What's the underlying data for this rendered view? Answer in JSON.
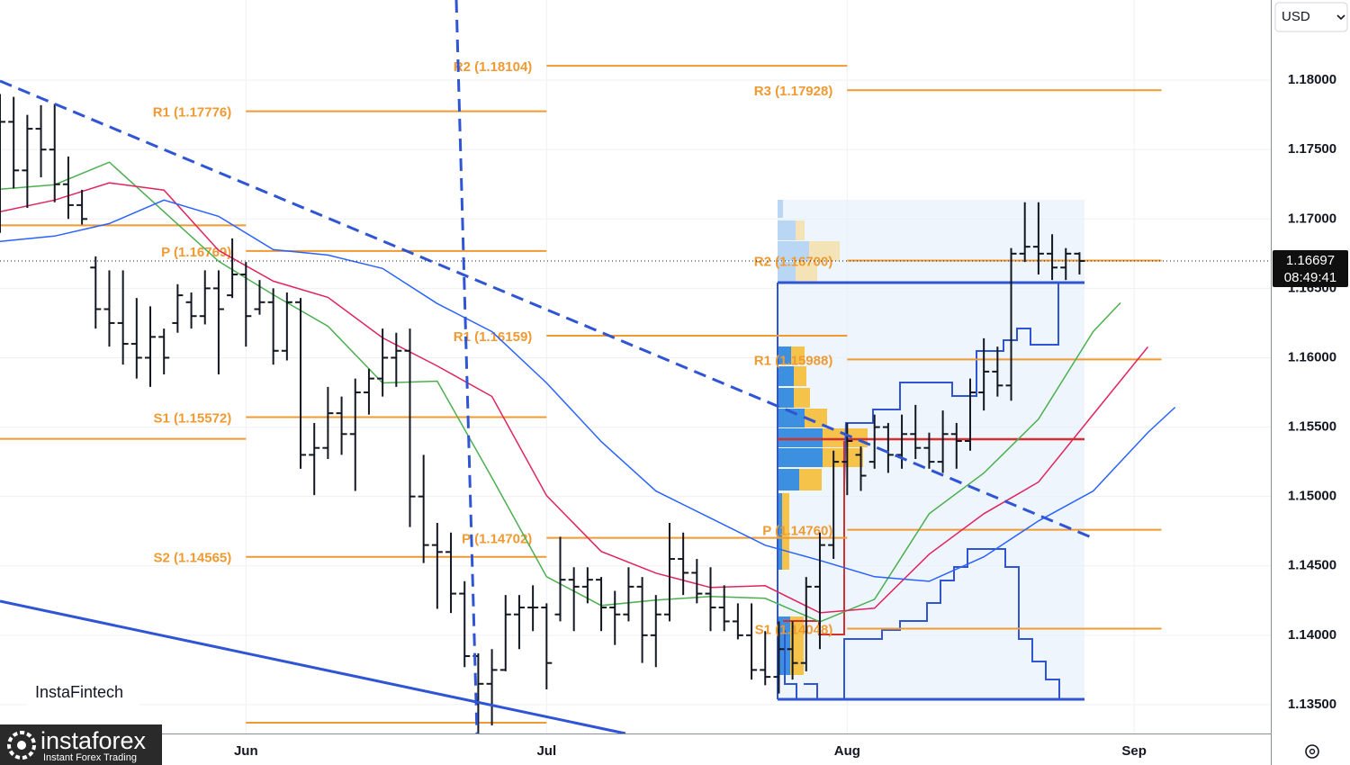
{
  "chart_data": {
    "type": "ohlc",
    "currency": "USD",
    "ylim": [
      1.13292,
      1.18578
    ],
    "yticks": [
      {
        "value": 1.135,
        "label": "1.13500"
      },
      {
        "value": 1.14,
        "label": "1.14000"
      },
      {
        "value": 1.145,
        "label": "1.14500"
      },
      {
        "value": 1.15,
        "label": "1.15000"
      },
      {
        "value": 1.155,
        "label": "1.15500"
      },
      {
        "value": 1.16,
        "label": "1.16000"
      },
      {
        "value": 1.165,
        "label": "1.16500"
      },
      {
        "value": 1.17,
        "label": "1.17000"
      },
      {
        "value": 1.175,
        "label": "1.17500"
      },
      {
        "value": 1.18,
        "label": "1.18000"
      }
    ],
    "xlim": [
      -18,
      75
    ],
    "xticks": [
      {
        "value": 0,
        "label": "Jun"
      },
      {
        "value": 22,
        "label": "Jul"
      },
      {
        "value": 44,
        "label": "Aug"
      },
      {
        "value": 65,
        "label": "Sep"
      }
    ],
    "grid": true,
    "bar_color": "#131722",
    "x": [
      -18,
      -17,
      -16,
      -15,
      -14,
      -13,
      -12,
      -11,
      -10,
      -9,
      -8,
      -7,
      -6,
      -5,
      -4,
      -3,
      -2,
      -1,
      0,
      1,
      2,
      3,
      4,
      5,
      6,
      7,
      8,
      9,
      10,
      11,
      12,
      13,
      14,
      15,
      16,
      17,
      18,
      19,
      20,
      21,
      22,
      23,
      24,
      25,
      26,
      27,
      28,
      29,
      30,
      31,
      32,
      33,
      34,
      35,
      36,
      37,
      38,
      39,
      40,
      41,
      42,
      43,
      44,
      45,
      46,
      47,
      48,
      49,
      50,
      51,
      52,
      53,
      54,
      55,
      56,
      57,
      58,
      59,
      60,
      61
    ],
    "open": [
      1.17,
      1.177,
      1.1735,
      1.1765,
      1.175,
      1.1725,
      1.171,
      1.1665,
      1.1635,
      1.1625,
      1.161,
      1.16,
      1.1615,
      1.1625,
      1.164,
      1.163,
      1.165,
      1.1645,
      1.166,
      1.1635,
      1.164,
      1.1605,
      1.164,
      1.153,
      1.1535,
      1.156,
      1.1545,
      1.1575,
      1.1585,
      1.16,
      1.1605,
      1.15,
      1.1465,
      1.146,
      1.143,
      1.1385,
      1.1365,
      1.1375,
      1.1415,
      1.142,
      1.142,
      1.1415,
      1.144,
      1.1435,
      1.144,
      1.142,
      1.1415,
      1.1435,
      1.14,
      1.1415,
      1.1455,
      1.1445,
      1.143,
      1.142,
      1.141,
      1.14,
      1.1375,
      1.137,
      1.139,
      1.138,
      1.1435,
      1.1465,
      1.1525,
      1.153,
      1.1525,
      1.155,
      1.153,
      1.1545,
      1.1535,
      1.1525,
      1.1545,
      1.154,
      1.1575,
      1.159,
      1.158,
      1.1675,
      1.168,
      1.1675,
      1.1665,
      1.1675
    ],
    "high": [
      1.179,
      1.1788,
      1.1775,
      1.1782,
      1.1783,
      1.1745,
      1.1721,
      1.1673,
      1.1663,
      1.1663,
      1.1643,
      1.1637,
      1.1621,
      1.1653,
      1.1647,
      1.1663,
      1.1663,
      1.1686,
      1.1669,
      1.1656,
      1.165,
      1.1647,
      1.1643,
      1.1553,
      1.1579,
      1.1572,
      1.1585,
      1.1592,
      1.1621,
      1.1618,
      1.1621,
      1.153,
      1.1481,
      1.1474,
      1.1439,
      1.1387,
      1.139,
      1.1429,
      1.1429,
      1.1436,
      1.1423,
      1.1471,
      1.1449,
      1.1449,
      1.1442,
      1.1432,
      1.1449,
      1.1442,
      1.1429,
      1.1481,
      1.1474,
      1.1455,
      1.1449,
      1.1436,
      1.1423,
      1.1423,
      1.1403,
      1.141,
      1.141,
      1.1442,
      1.1474,
      1.1533,
      1.1553,
      1.1536,
      1.1559,
      1.1553,
      1.1559,
      1.1566,
      1.1546,
      1.1562,
      1.1553,
      1.1585,
      1.1614,
      1.1608,
      1.1679,
      1.1712,
      1.1712,
      1.1689,
      1.1679,
      1.1676
    ],
    "low": [
      1.169,
      1.1722,
      1.1708,
      1.173,
      1.1712,
      1.17,
      1.1696,
      1.1621,
      1.1608,
      1.1595,
      1.1585,
      1.1579,
      1.1588,
      1.1618,
      1.1621,
      1.1624,
      1.1588,
      1.1643,
      1.1608,
      1.1631,
      1.1595,
      1.1598,
      1.152,
      1.1501,
      1.1527,
      1.153,
      1.1504,
      1.1559,
      1.1572,
      1.1579,
      1.1478,
      1.1452,
      1.1419,
      1.1416,
      1.1377,
      1.1329,
      1.1335,
      1.1374,
      1.139,
      1.1403,
      1.1361,
      1.141,
      1.1403,
      1.1423,
      1.1403,
      1.1393,
      1.141,
      1.138,
      1.1377,
      1.141,
      1.1429,
      1.1423,
      1.1403,
      1.1403,
      1.1397,
      1.1368,
      1.1364,
      1.1358,
      1.1368,
      1.1374,
      1.139,
      1.1455,
      1.1501,
      1.1504,
      1.152,
      1.1517,
      1.152,
      1.1527,
      1.152,
      1.1517,
      1.152,
      1.1533,
      1.1562,
      1.1572,
      1.1569,
      1.1669,
      1.166,
      1.1656,
      1.1656,
      1.166
    ],
    "close": [
      1.177,
      1.1735,
      1.1765,
      1.175,
      1.1725,
      1.171,
      1.17,
      1.1635,
      1.1625,
      1.161,
      1.16,
      1.1615,
      1.16,
      1.1645,
      1.163,
      1.165,
      1.1635,
      1.166,
      1.163,
      1.164,
      1.1605,
      1.164,
      1.153,
      1.1535,
      1.156,
      1.1545,
      1.1575,
      1.1585,
      1.16,
      1.1605,
      1.15,
      1.1465,
      1.146,
      1.143,
      1.1385,
      1.1365,
      1.1375,
      1.1415,
      1.142,
      1.142,
      1.138,
      1.144,
      1.1435,
      1.144,
      1.142,
      1.1415,
      1.1435,
      1.14,
      1.1415,
      1.1455,
      1.1445,
      1.143,
      1.142,
      1.141,
      1.14,
      1.1375,
      1.137,
      1.139,
      1.138,
      1.1435,
      1.1465,
      1.1525,
      1.154,
      1.1515,
      1.155,
      1.153,
      1.1545,
      1.1535,
      1.1525,
      1.1545,
      1.154,
      1.1575,
      1.159,
      1.158,
      1.1675,
      1.168,
      1.1675,
      1.1665,
      1.1675,
      1.16697
    ],
    "last_price": 1.16697,
    "countdown": "08:49:41",
    "moving_averages": [
      {
        "color": "#4caf50",
        "x": [
          -18,
          -14,
          -10,
          -6,
          -2,
          2,
          6,
          10,
          14,
          18,
          22,
          26,
          30,
          34,
          38,
          42,
          46,
          50,
          54,
          58,
          62,
          64
        ],
        "values": [
          1.17214,
          1.17247,
          1.17409,
          1.17052,
          1.16695,
          1.16454,
          1.16227,
          1.15818,
          1.15831,
          1.15136,
          1.14422,
          1.14214,
          1.14253,
          1.14279,
          1.14266,
          1.14097,
          1.14259,
          1.14876,
          1.15169,
          1.15558,
          1.16188,
          1.16396
        ]
      },
      {
        "color": "#e0245e",
        "x": [
          -18,
          -14,
          -10,
          -6,
          -2,
          2,
          6,
          10,
          14,
          18,
          22,
          26,
          30,
          34,
          38,
          42,
          46,
          50,
          54,
          58,
          62,
          66
        ],
        "values": [
          1.17052,
          1.17136,
          1.1726,
          1.17208,
          1.16773,
          1.16552,
          1.16435,
          1.16143,
          1.15941,
          1.15721,
          1.15006,
          1.14604,
          1.14448,
          1.14344,
          1.14357,
          1.14162,
          1.14195,
          1.14584,
          1.14876,
          1.15104,
          1.15591,
          1.16078
        ]
      },
      {
        "color": "#2962ff",
        "x": [
          -18,
          -14,
          -10,
          -6,
          -2,
          2,
          6,
          10,
          14,
          18,
          22,
          26,
          30,
          34,
          38,
          42,
          46,
          50,
          54,
          58,
          62,
          66,
          68
        ],
        "values": [
          1.16838,
          1.16877,
          1.16967,
          1.17136,
          1.17019,
          1.16779,
          1.1674,
          1.16643,
          1.1639,
          1.16188,
          1.15818,
          1.15396,
          1.15039,
          1.14844,
          1.14649,
          1.14539,
          1.14422,
          1.14389,
          1.14565,
          1.14824,
          1.15039,
          1.15461,
          1.15643
        ]
      }
    ],
    "pivot_color": "#ef9a32",
    "pivot_lines": [
      {
        "x": [
          -18,
          0
        ],
        "value": 1.16954
      },
      {
        "x": [
          -18,
          0
        ],
        "value": 1.15415
      },
      {
        "x": [
          0,
          22
        ],
        "value": 1.17776,
        "label": "R1 (1.17776)"
      },
      {
        "x": [
          0,
          22
        ],
        "value": 1.16769,
        "label": "P (1.16769)"
      },
      {
        "x": [
          0,
          22
        ],
        "value": 1.15572,
        "label": "S1 (1.15572)"
      },
      {
        "x": [
          0,
          22
        ],
        "value": 1.14565,
        "label": "S2 (1.14565)"
      },
      {
        "x": [
          0,
          22
        ],
        "value": 1.1337
      },
      {
        "x": [
          22,
          44
        ],
        "value": 1.18104,
        "label": "R2 (1.18104)"
      },
      {
        "x": [
          22,
          44
        ],
        "value": 1.16159,
        "label": "R1 (1.16159)"
      },
      {
        "x": [
          22,
          44
        ],
        "value": 1.14702,
        "label": "P (1.14702)"
      },
      {
        "x": [
          44,
          67
        ],
        "value": 1.17928,
        "label": "R3 (1.17928)"
      },
      {
        "x": [
          44,
          67
        ],
        "value": 1.167,
        "label": "R2 (1.16700)"
      },
      {
        "x": [
          44,
          67
        ],
        "value": 1.15988,
        "label": "R1 (1.15988)"
      },
      {
        "x": [
          44,
          67
        ],
        "value": 1.1476,
        "label": "P (1.14760)"
      },
      {
        "x": [
          44,
          67
        ],
        "value": 1.14048,
        "label": "S1 (1.14048)"
      }
    ]
  },
  "branding": {
    "fintech": "InstaFintech",
    "brand": "instaforex",
    "tagline": "Instant Forex Trading"
  }
}
